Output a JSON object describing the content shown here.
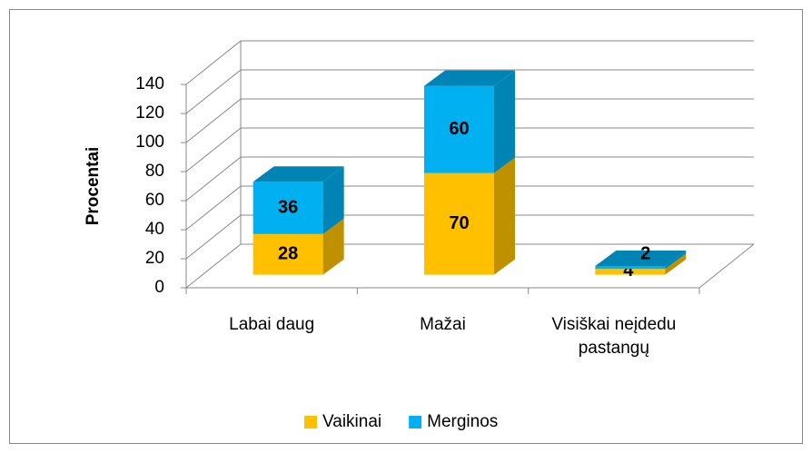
{
  "chart_data": {
    "type": "bar3d_stacked",
    "categories": [
      "Labai daug",
      "Mažai",
      "Visiškai neįdedu pastangų"
    ],
    "series": [
      {
        "name": "Vaikinai",
        "color": "#FFC000",
        "values": [
          28,
          70,
          4
        ]
      },
      {
        "name": "Merginos",
        "color": "#00B0F0",
        "values": [
          36,
          60,
          2
        ]
      }
    ],
    "ylabel": "Procentai",
    "ylim": [
      0,
      140
    ],
    "yticks": [
      0,
      20,
      40,
      60,
      80,
      100,
      120,
      140
    ],
    "grid": true,
    "legend": "bottom"
  }
}
